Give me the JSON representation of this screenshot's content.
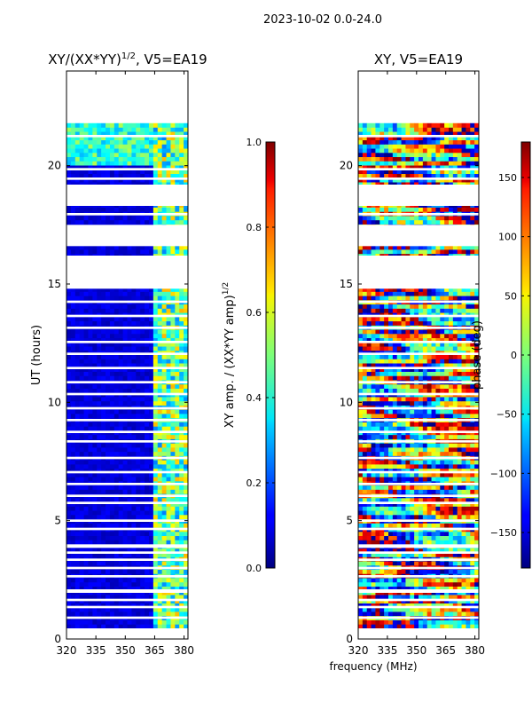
{
  "suptitle": "2023-10-02 0.0-24.0",
  "chart_data": [
    {
      "type": "heatmap",
      "title_main": "XY/(XX*YY)",
      "title_sup": "1/2",
      "title_tail": ", V5=EA19",
      "xlabel": "",
      "ylabel": "UT (hours)",
      "xlim": [
        320,
        382
      ],
      "ylim": [
        0,
        24
      ],
      "xticks": [
        320,
        335,
        350,
        365,
        380
      ],
      "yticks": [
        0,
        5,
        10,
        15,
        20
      ],
      "data_hours": [
        [
          0.45,
          21.8
        ]
      ],
      "gaps_hours": [
        [
          0.3,
          0.45
        ],
        [
          0.85,
          0.95
        ],
        [
          1.3,
          1.4
        ],
        [
          1.6,
          1.7
        ],
        [
          1.95,
          2.1
        ],
        [
          2.6,
          2.7
        ],
        [
          2.95,
          3.05
        ],
        [
          3.3,
          3.4
        ],
        [
          3.6,
          3.7
        ],
        [
          3.85,
          4.0
        ],
        [
          4.6,
          4.7
        ],
        [
          4.95,
          5.05
        ],
        [
          5.7,
          5.8
        ],
        [
          6.0,
          6.1
        ],
        [
          6.5,
          6.6
        ],
        [
          7.0,
          7.1
        ],
        [
          7.6,
          7.7
        ],
        [
          8.3,
          8.4
        ],
        [
          8.7,
          8.8
        ],
        [
          9.2,
          9.3
        ],
        [
          9.7,
          9.8
        ],
        [
          10.3,
          10.4
        ],
        [
          10.8,
          10.9
        ],
        [
          11.4,
          11.5
        ],
        [
          12.0,
          12.1
        ],
        [
          12.5,
          12.6
        ],
        [
          13.1,
          13.2
        ],
        [
          13.6,
          13.7
        ],
        [
          14.2,
          14.3
        ],
        [
          14.8,
          16.2
        ],
        [
          16.6,
          17.5
        ],
        [
          17.9,
          18.0
        ],
        [
          18.3,
          19.2
        ],
        [
          19.4,
          19.5
        ],
        [
          19.8,
          19.9
        ],
        [
          21.2,
          21.3
        ]
      ],
      "colorbar": {
        "label_main": "XY amp. / (XX*YY amp)",
        "label_sup": "1/2",
        "min": 0.0,
        "max": 1.0,
        "ticks": [
          "0.0",
          "0.2",
          "0.4",
          "0.6",
          "0.8",
          "1.0"
        ],
        "tick_values": [
          0.0,
          0.2,
          0.4,
          0.6,
          0.8,
          1.0
        ]
      }
    },
    {
      "type": "heatmap",
      "title": "XY, V5=EA19",
      "xlabel": "frequency (MHz)",
      "ylabel": "",
      "xlim": [
        320,
        382
      ],
      "ylim": [
        0,
        24
      ],
      "xticks": [
        320,
        335,
        350,
        365,
        380
      ],
      "yticks": [
        0,
        5,
        10,
        15,
        20
      ],
      "data_hours": [
        [
          0.45,
          21.8
        ]
      ],
      "gaps_hours": [
        [
          0.3,
          0.45
        ],
        [
          0.85,
          0.95
        ],
        [
          1.3,
          1.4
        ],
        [
          1.6,
          1.7
        ],
        [
          1.95,
          2.1
        ],
        [
          2.6,
          2.7
        ],
        [
          2.95,
          3.05
        ],
        [
          3.3,
          3.4
        ],
        [
          3.6,
          3.7
        ],
        [
          3.85,
          4.0
        ],
        [
          4.6,
          4.7
        ],
        [
          4.95,
          5.05
        ],
        [
          5.7,
          5.8
        ],
        [
          6.0,
          6.1
        ],
        [
          6.5,
          6.6
        ],
        [
          7.0,
          7.1
        ],
        [
          7.6,
          7.7
        ],
        [
          8.3,
          8.4
        ],
        [
          8.7,
          8.8
        ],
        [
          9.2,
          9.3
        ],
        [
          9.7,
          9.8
        ],
        [
          10.3,
          10.4
        ],
        [
          10.8,
          10.9
        ],
        [
          11.4,
          11.5
        ],
        [
          12.0,
          12.1
        ],
        [
          12.5,
          12.6
        ],
        [
          13.1,
          13.2
        ],
        [
          13.6,
          13.7
        ],
        [
          14.2,
          14.3
        ],
        [
          14.8,
          16.2
        ],
        [
          16.6,
          17.5
        ],
        [
          17.9,
          18.0
        ],
        [
          18.3,
          19.2
        ],
        [
          19.4,
          19.5
        ],
        [
          19.8,
          19.9
        ],
        [
          21.2,
          21.3
        ]
      ],
      "colorbar": {
        "label": "phase (deg)",
        "min": -180,
        "max": 180,
        "ticks": [
          "−150",
          "−100",
          "−50",
          "0",
          "50",
          "100",
          "150"
        ],
        "tick_values": [
          -150,
          -100,
          -50,
          0,
          50,
          100,
          150
        ]
      }
    }
  ]
}
